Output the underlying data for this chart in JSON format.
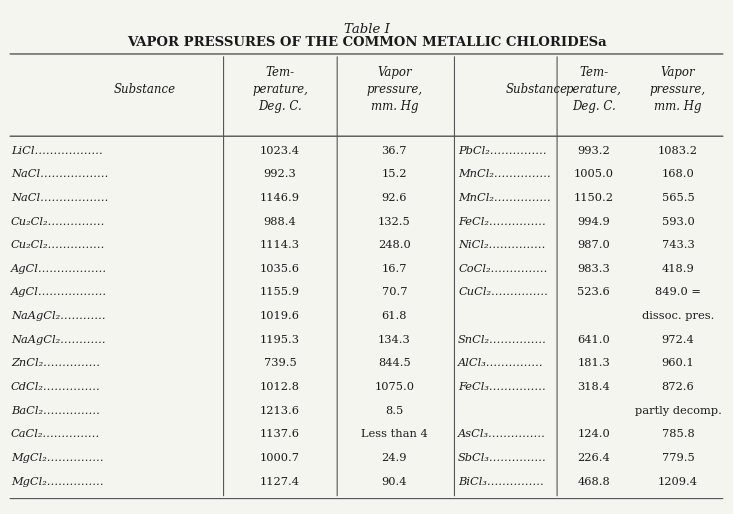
{
  "title_line1": "Table I",
  "title_line2": "VAPOR PRESSURES OF THE COMMON METALLIC CHLORIDES",
  "title_superscript": "a",
  "col_headers": [
    [
      "Substance",
      "Tem-\nperature,\nDeg. C.",
      "Vapor\npressure,\nmm. Hg",
      "Substance",
      "Tem-\nperature,\nDeg. C.",
      "Vapor\npressure,\nmm. Hg"
    ]
  ],
  "rows": [
    [
      "LiCl………………",
      "1023.4",
      "36.7",
      "PbCl₂……………",
      "993.2",
      "1083.2"
    ],
    [
      "NaCl………………",
      "992.3",
      "15.2",
      "MnCl₂……………",
      "1005.0",
      "168.0"
    ],
    [
      "NaCl………………",
      "1146.9",
      "92.6",
      "MnCl₂……………",
      "1150.2",
      "565.5"
    ],
    [
      "Cu₂Cl₂……………",
      "988.4",
      "132.5",
      "FeCl₂……………",
      "994.9",
      "593.0"
    ],
    [
      "Cu₂Cl₂……………",
      "1114.3",
      "248.0",
      "NiCl₂……………",
      "987.0",
      "743.3"
    ],
    [
      "AgCl………………",
      "1035.6",
      "16.7",
      "CoCl₂……………",
      "983.3",
      "418.9"
    ],
    [
      "AgCl………………",
      "1155.9",
      "70.7",
      "CuCl₂……………",
      "523.6",
      "849.0 ="
    ],
    [
      "NaAgCl₂…………",
      "1019.6",
      "61.8",
      "",
      "",
      "dissoc. pres."
    ],
    [
      "NaAgCl₂…………",
      "1195.3",
      "134.3",
      "SnCl₂……………",
      "641.0",
      "972.4"
    ],
    [
      "ZnCl₂……………",
      "739.5",
      "844.5",
      "AlCl₃……………",
      "181.3",
      "960.1"
    ],
    [
      "CdCl₂……………",
      "1012.8",
      "1075.0",
      "FeCl₃……………",
      "318.4",
      "872.6"
    ],
    [
      "BaCl₂……………",
      "1213.6",
      "8.5",
      "",
      "",
      "partly decomp."
    ],
    [
      "CaCl₂……………",
      "1137.6",
      "Less than 4",
      "AsCl₃……………",
      "124.0",
      "785.8"
    ],
    [
      "MgCl₂……………",
      "1000.7",
      "24.9",
      "SbCl₃……………",
      "226.4",
      "779.5"
    ],
    [
      "MgCl₂……………",
      "1127.4",
      "90.4",
      "BiCl₃……………",
      "468.8",
      "1209.4"
    ]
  ],
  "bg_color": "#f5f5f0",
  "text_color": "#1a1a1a",
  "line_color": "#555555"
}
